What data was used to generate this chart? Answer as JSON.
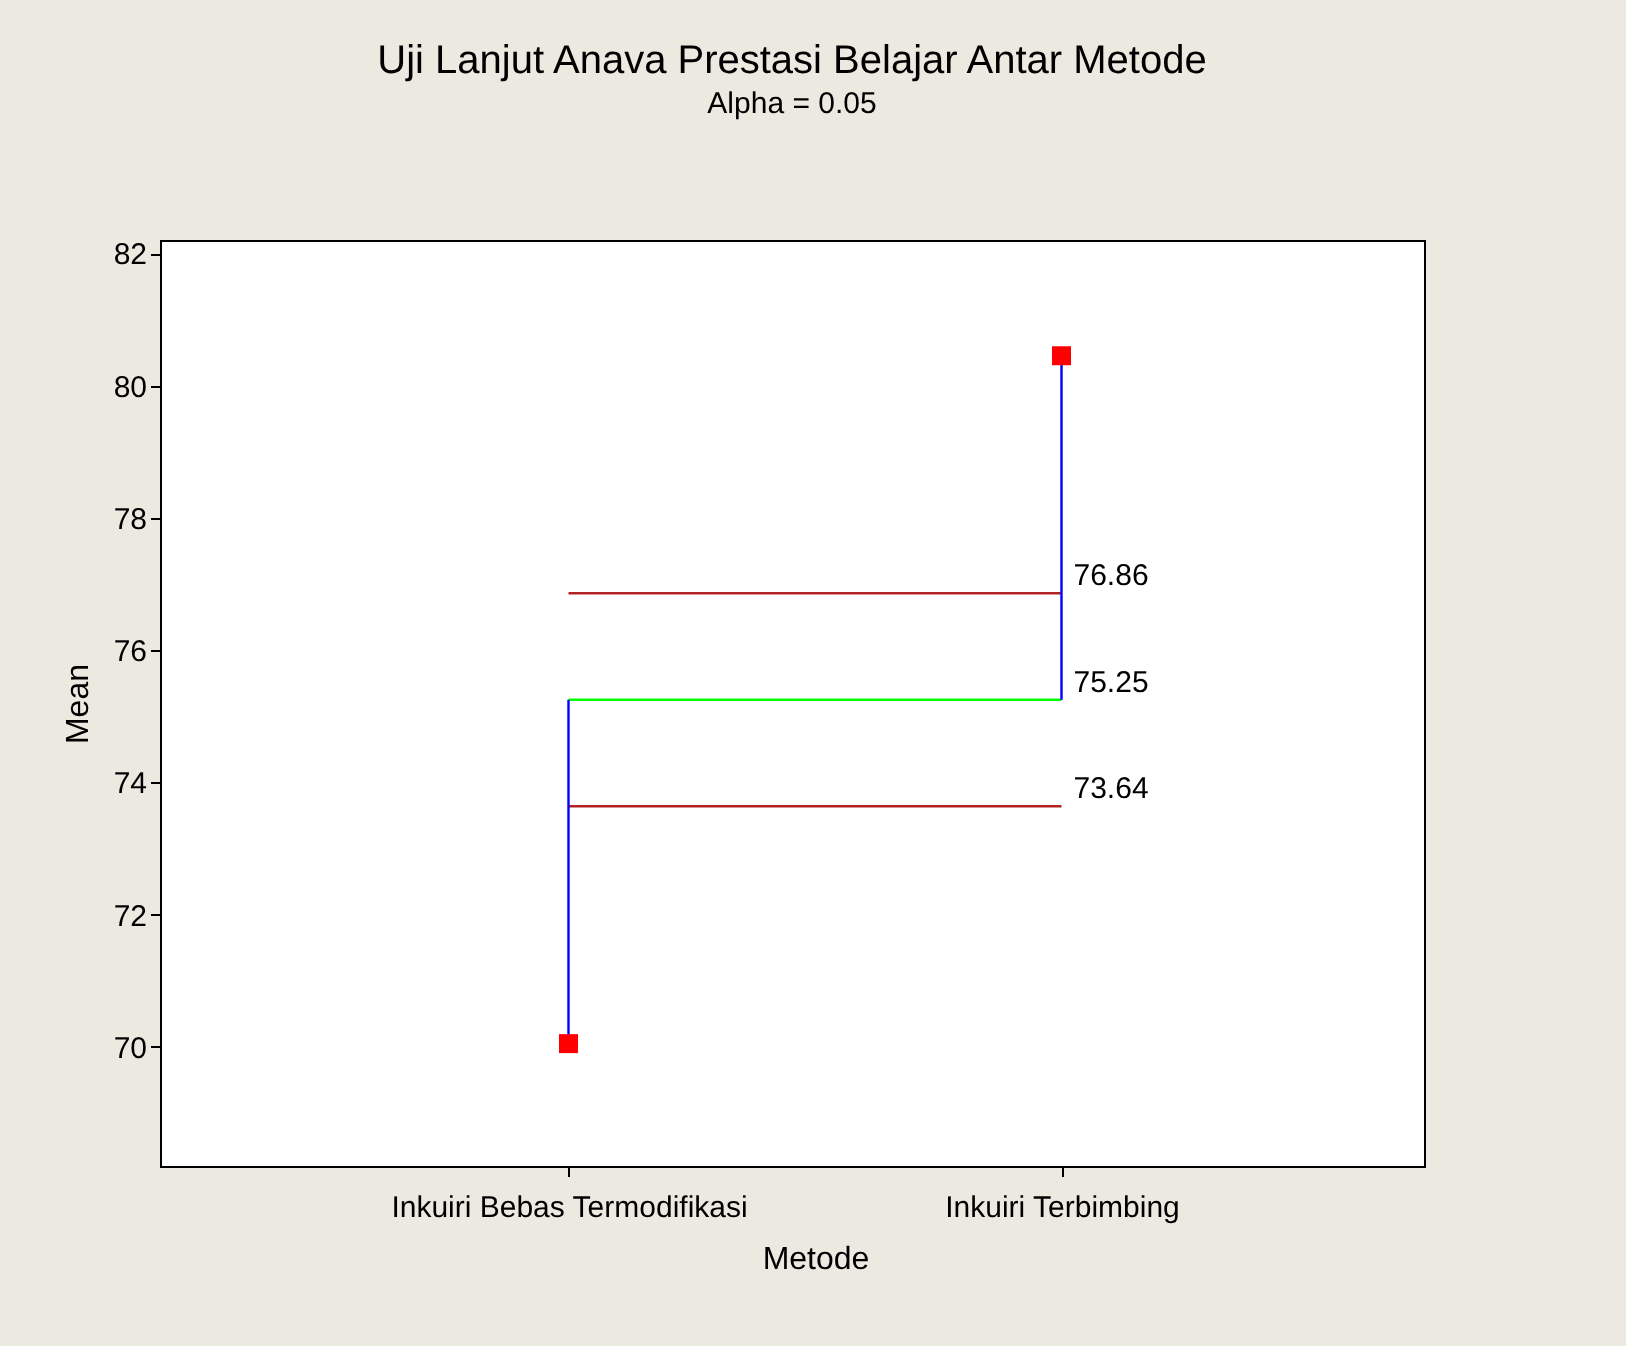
{
  "chart_data": {
    "type": "scatter",
    "title": "Uji Lanjut Anava Prestasi Belajar Antar Metode",
    "subtitle": "Alpha = 0.05",
    "xlabel": "Metode",
    "ylabel": "Mean",
    "categories": [
      "Inkuiri Bebas Termodifikasi",
      "Inkuiri Terbimbing"
    ],
    "series": [
      {
        "type": "line",
        "color": "#0000ff",
        "x": [
          "Inkuiri Bebas Termodifikasi",
          "Inkuiri Bebas Termodifikasi"
        ],
        "values": [
          70.05,
          75.25
        ],
        "marker": "none"
      },
      {
        "type": "line",
        "color": "#0000ff",
        "x": [
          "Inkuiri Terbimbing",
          "Inkuiri Terbimbing"
        ],
        "values": [
          75.25,
          80.45
        ],
        "marker": "none"
      },
      {
        "color": "#ff0000",
        "values": [
          70.05,
          80.45
        ],
        "marker": "square"
      }
    ],
    "grid": false,
    "legend": false,
    "ylim": [
      68.2,
      82.2
    ],
    "yticks": [
      70,
      72,
      74,
      76,
      78,
      80,
      82
    ],
    "ref_lines": [
      {
        "axis": "y",
        "value": 76.86,
        "label": "76.86",
        "color": "#b22222"
      },
      {
        "axis": "y",
        "value": 75.25,
        "label": "75.25",
        "color": "#00ff00"
      },
      {
        "axis": "y",
        "value": 73.64,
        "label": "73.64",
        "color": "#b22222"
      }
    ]
  }
}
